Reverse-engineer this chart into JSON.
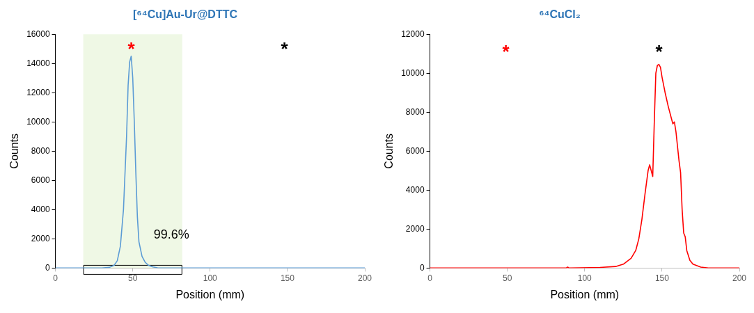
{
  "chart_data": [
    {
      "type": "line",
      "title": "[⁶⁴Cu]Au-Ur@DTTC",
      "xlabel": "Position (mm)",
      "ylabel": "Counts",
      "x": [
        0,
        30,
        35,
        38,
        40,
        42,
        44,
        46,
        47,
        48,
        49,
        50,
        51,
        52,
        53,
        54,
        56,
        58,
        60,
        63,
        66,
        70,
        200
      ],
      "series": [
        {
          "color": "#5b9bd5",
          "values": [
            0,
            0,
            50,
            200,
            500,
            1500,
            4000,
            9000,
            12500,
            14100,
            14500,
            13000,
            10000,
            6500,
            3500,
            1800,
            800,
            400,
            200,
            80,
            20,
            0,
            0
          ]
        }
      ],
      "xlim": [
        0,
        200
      ],
      "xticks": [
        0,
        50,
        100,
        150,
        200
      ],
      "ylim": [
        0,
        16000
      ],
      "yticks": [
        0,
        2000,
        4000,
        6000,
        8000,
        10000,
        12000,
        14000,
        16000
      ],
      "bands": [
        {
          "axis": "x",
          "from": 18,
          "to": 82,
          "color": "#92d050"
        }
      ],
      "annotations": [
        "*",
        "*",
        "99.6%"
      ],
      "grid": false,
      "legend": false,
      "marker": "none",
      "line_style": "solid"
    },
    {
      "type": "line",
      "title": "⁶⁴CuCl₂",
      "xlabel": "Position (mm)",
      "ylabel": "Counts",
      "x": [
        0,
        88,
        89,
        90,
        110,
        120,
        125,
        130,
        133,
        135,
        137,
        139,
        141,
        142,
        143,
        144,
        145,
        146,
        147,
        148,
        149,
        150,
        152,
        154,
        156,
        157,
        158,
        159,
        161,
        162,
        163,
        164,
        165,
        166,
        168,
        170,
        175,
        180,
        200
      ],
      "series": [
        {
          "color": "#ff0000",
          "values": [
            0,
            0,
            50,
            0,
            30,
            80,
            200,
            500,
            900,
            1500,
            2500,
            3800,
            5000,
            5300,
            5000,
            4700,
            7500,
            10000,
            10400,
            10450,
            10300,
            9800,
            9000,
            8300,
            7700,
            7400,
            7500,
            7000,
            5500,
            4900,
            3000,
            1800,
            1600,
            900,
            400,
            200,
            50,
            0,
            0
          ]
        }
      ],
      "xlim": [
        0,
        200
      ],
      "xticks": [
        0,
        50,
        100,
        150,
        200
      ],
      "ylim": [
        0,
        12000
      ],
      "yticks": [
        0,
        2000,
        4000,
        6000,
        8000,
        10000,
        12000
      ],
      "annotations": [
        "*",
        "*"
      ],
      "grid": false,
      "legend": false,
      "marker": "none",
      "line_style": "solid"
    }
  ]
}
